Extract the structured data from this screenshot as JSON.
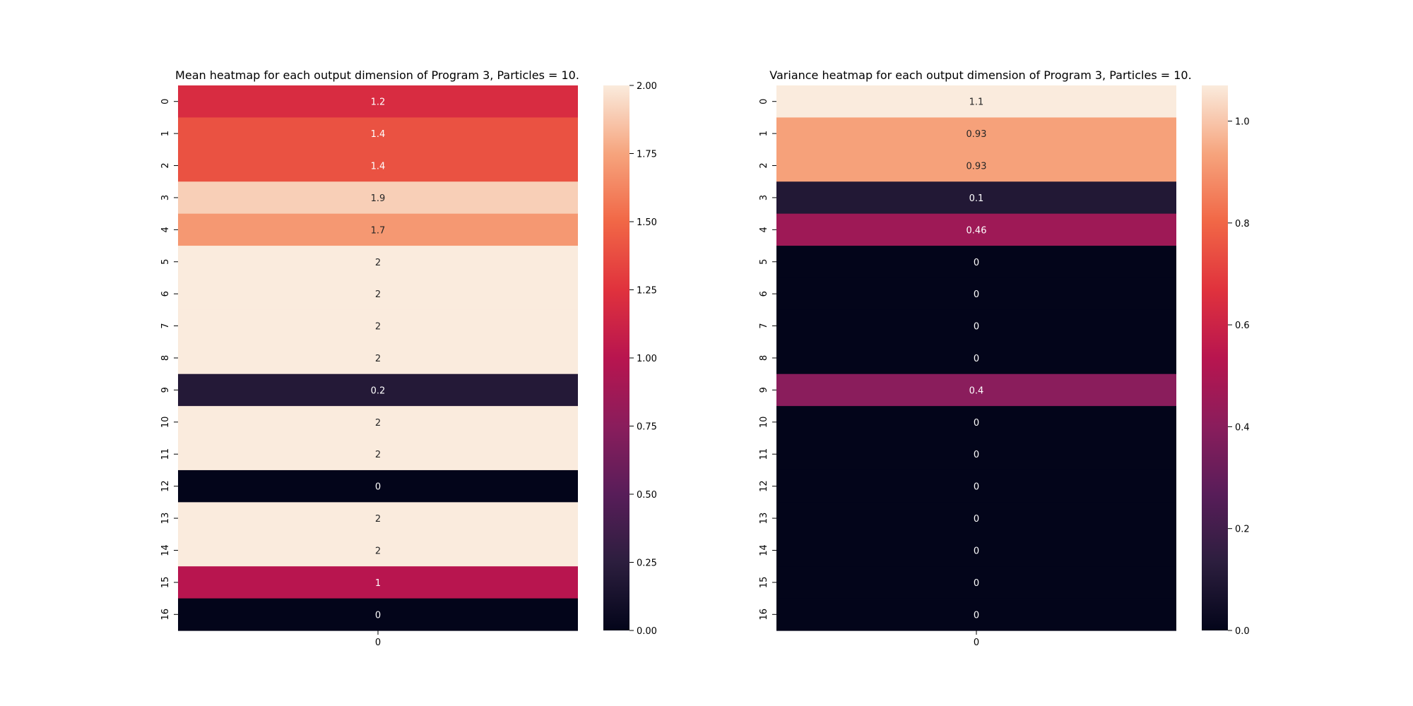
{
  "chart_data": [
    {
      "type": "heatmap",
      "title": "Mean heatmap for each output dimension of Program 3, Particles = 10.",
      "xlabel": "",
      "ylabel": "",
      "x_categories": [
        "0"
      ],
      "y_categories": [
        "0",
        "1",
        "2",
        "3",
        "4",
        "5",
        "6",
        "7",
        "8",
        "9",
        "10",
        "11",
        "12",
        "13",
        "14",
        "15",
        "16"
      ],
      "values": [
        1.2,
        1.4,
        1.4,
        1.9,
        1.7,
        2,
        2,
        2,
        2,
        0.2,
        2,
        2,
        0,
        2,
        2,
        1,
        0
      ],
      "annotations": [
        "1.2",
        "1.4",
        "1.4",
        "1.9",
        "1.7",
        "2",
        "2",
        "2",
        "2",
        "0.2",
        "2",
        "2",
        "0",
        "2",
        "2",
        "1",
        "0"
      ],
      "colormap": "rocket",
      "vmin": 0,
      "vmax": 2,
      "colorbar_ticks": [
        0,
        0.25,
        0.5,
        0.75,
        1.0,
        1.25,
        1.5,
        1.75,
        2.0
      ],
      "colorbar_tick_labels": [
        "0.00",
        "0.25",
        "0.50",
        "0.75",
        "1.00",
        "1.25",
        "1.50",
        "1.75",
        "2.00"
      ]
    },
    {
      "type": "heatmap",
      "title": "Variance heatmap for each output dimension of Program 3, Particles = 10.",
      "xlabel": "",
      "ylabel": "",
      "x_categories": [
        "0"
      ],
      "y_categories": [
        "0",
        "1",
        "2",
        "3",
        "4",
        "5",
        "6",
        "7",
        "8",
        "9",
        "10",
        "11",
        "12",
        "13",
        "14",
        "15",
        "16"
      ],
      "values": [
        1.07,
        0.93,
        0.93,
        0.1,
        0.46,
        0,
        0,
        0,
        0,
        0.4,
        0,
        0,
        0,
        0,
        0,
        0,
        0
      ],
      "annotations": [
        "1.1",
        "0.93",
        "0.93",
        "0.1",
        "0.46",
        "0",
        "0",
        "0",
        "0",
        "0.4",
        "0",
        "0",
        "0",
        "0",
        "0",
        "0",
        "0"
      ],
      "colormap": "rocket",
      "vmin": 0,
      "vmax": 1.07,
      "colorbar_ticks": [
        0,
        0.2,
        0.4,
        0.6,
        0.8,
        1.0
      ],
      "colorbar_tick_labels": [
        "0.0",
        "0.2",
        "0.4",
        "0.6",
        "0.8",
        "1.0"
      ]
    }
  ]
}
